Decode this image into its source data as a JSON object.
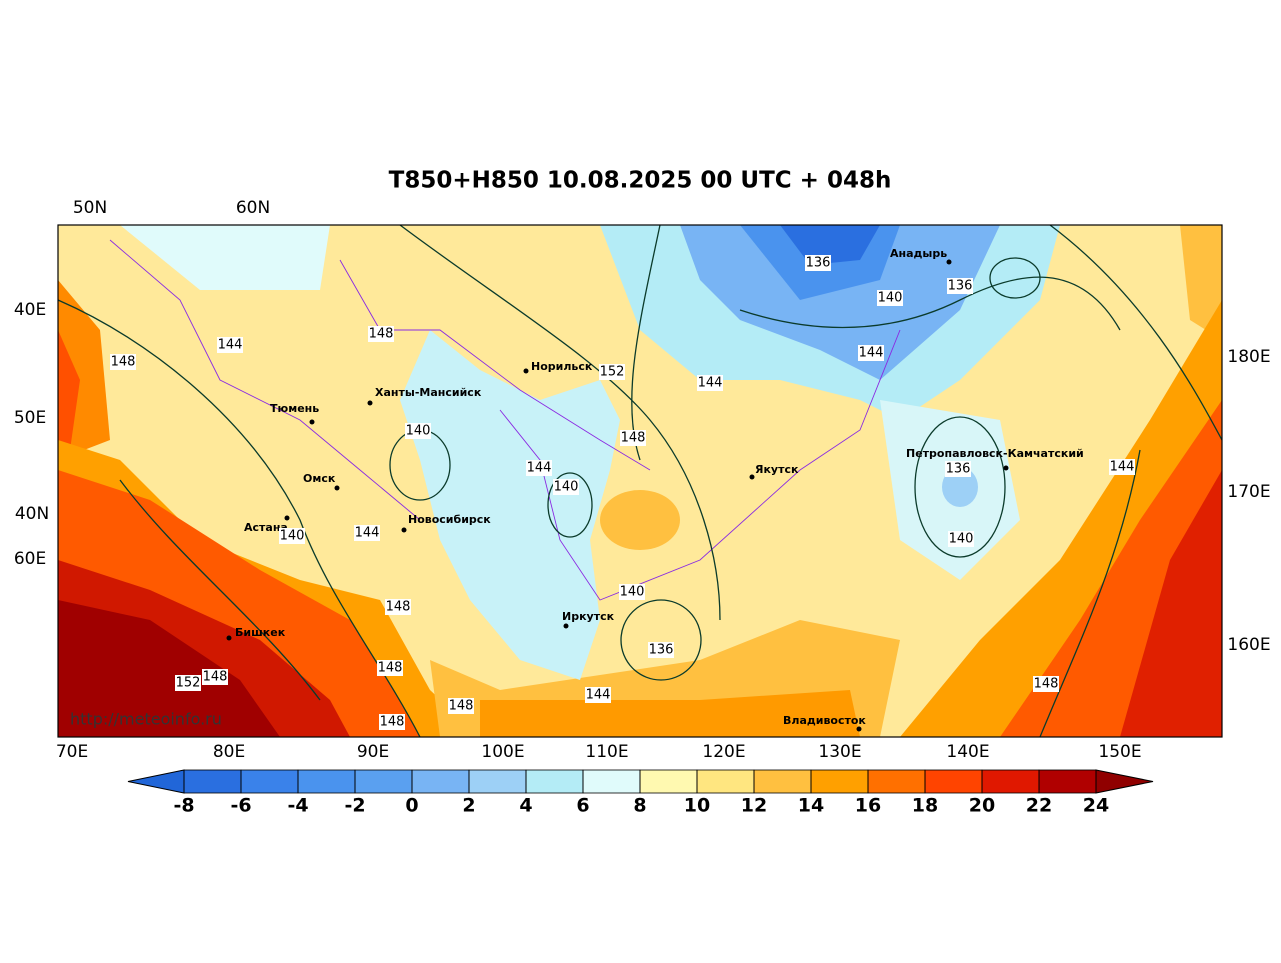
{
  "title": "T850+H850 10.08.2025 00 UTC + 048h",
  "grid_labels": {
    "top": [
      "50N",
      "60N"
    ],
    "left": [
      "40E",
      "50E",
      "40N",
      "60E"
    ],
    "right": [
      "180E",
      "170E",
      "160E"
    ],
    "bottom": [
      "70E",
      "80E",
      "90E",
      "100E",
      "110E",
      "120E",
      "130E",
      "140E",
      "150E"
    ]
  },
  "cities": [
    "Норильск",
    "Ханты-Мансийск",
    "Тюмень",
    "Омск",
    "Астана",
    "Новосибирск",
    "Якутск",
    "Анадырь",
    "Петропавловск-Камчатский",
    "Бишкек",
    "Иркутск",
    "Владивосток"
  ],
  "contour_labels": [
    136,
    140,
    136,
    144,
    144,
    152,
    148,
    144,
    148,
    140,
    148,
    144,
    140,
    136,
    144,
    140,
    144,
    140,
    148,
    140,
    136,
    148,
    152,
    148,
    144,
    148,
    148,
    148
  ],
  "watermark": "http://meteoinfo.ru",
  "colorbar": {
    "ticks": [
      -8,
      -6,
      -4,
      -2,
      0,
      2,
      4,
      6,
      8,
      10,
      12,
      14,
      16,
      18,
      20,
      22,
      24
    ],
    "colors": [
      "#2166d8",
      "#2a6fe0",
      "#3a82ea",
      "#4a93ee",
      "#5aa0f0",
      "#78b4f4",
      "#9dd0f6",
      "#b4ecf6",
      "#e0fbfb",
      "#fff9b0",
      "#ffe680",
      "#ffc040",
      "#ffa000",
      "#ff7000",
      "#ff4400",
      "#e01800",
      "#b00000",
      "#900000"
    ]
  }
}
